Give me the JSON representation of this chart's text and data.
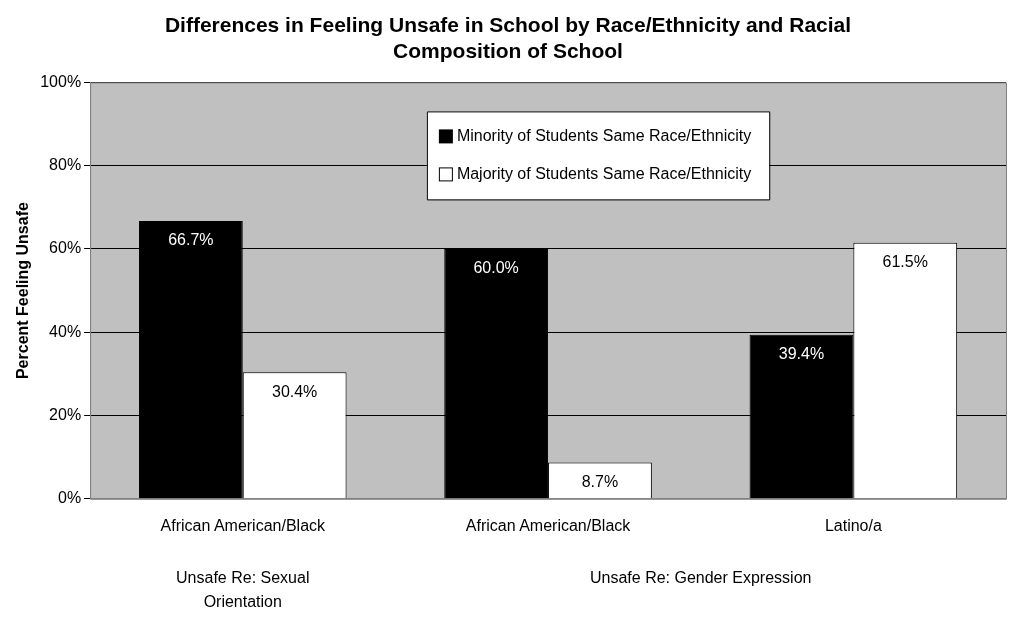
{
  "chart_data": {
    "type": "bar",
    "title": "Differences in Feeling Unsafe in School by Race/Ethnicity and Racial Composition of School",
    "ylabel": "Percent Feeling Unsafe",
    "categories": [
      "African American/Black",
      "African American/Black",
      "Latino/a"
    ],
    "series": [
      {
        "name": "Minority of Students Same Race/Ethnicity",
        "color": "#000000",
        "values": [
          66.7,
          60.0,
          39.4
        ],
        "value_labels": [
          "66.7%",
          "60.0%",
          "39.4%"
        ]
      },
      {
        "name": "Majority of Students Same Race/Ethnicity",
        "color": "#ffffff",
        "values": [
          30.4,
          8.7,
          61.5
        ],
        "value_labels": [
          "30.4%",
          "8.7%",
          "61.5%"
        ]
      }
    ],
    "annotations": [
      "Unsafe Re: Sexual Orientation",
      "Unsafe Re: Gender Expression"
    ],
    "ylim": [
      0,
      100
    ],
    "yticks": [
      {
        "value": 0,
        "label": "0%"
      },
      {
        "value": 20,
        "label": "20%"
      },
      {
        "value": 40,
        "label": "40%"
      },
      {
        "value": 60,
        "label": "60%"
      },
      {
        "value": 80,
        "label": "80%"
      },
      {
        "value": 100,
        "label": "100%"
      }
    ],
    "grid": "y",
    "legend": "top"
  }
}
